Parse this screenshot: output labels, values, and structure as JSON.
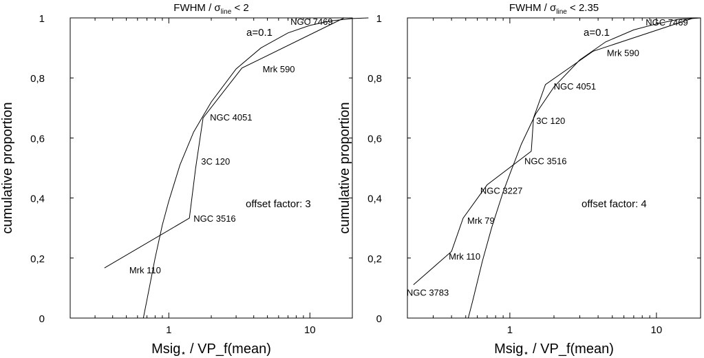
{
  "chart_data": [
    {
      "type": "line",
      "title": "FWHM / σ",
      "title_sub": "line",
      "title_suffix": " < 2",
      "xlabel": "Msig",
      "xlabel_sub": "⋆",
      "xlabel_suffix": " / VP_f(mean)",
      "ylabel": "cumulative proportion",
      "x_scale": "log",
      "xlim": [
        0.2,
        20
      ],
      "ylim": [
        0,
        1
      ],
      "x_ticks": [
        {
          "v": 1,
          "label": "1"
        },
        {
          "v": 10,
          "label": "10"
        }
      ],
      "y_ticks": [
        {
          "v": 0,
          "label": "0"
        },
        {
          "v": 0.2,
          "label": "0,2"
        },
        {
          "v": 0.4,
          "label": "0,4"
        },
        {
          "v": 0.6,
          "label": "0,6"
        },
        {
          "v": 0.8,
          "label": "0,8"
        },
        {
          "v": 1,
          "label": "1"
        }
      ],
      "annotations": [
        "a=0.1",
        "offset factor: 3"
      ],
      "series": [
        {
          "points": [
            {
              "x": 0.35,
              "y": 0.167,
              "label": "Mrk 110"
            },
            {
              "x": 1.4,
              "y": 0.333,
              "label": "NGC 3516"
            },
            {
              "x": 1.55,
              "y": 0.5,
              "label": "3C 120"
            },
            {
              "x": 1.75,
              "y": 0.667,
              "label": "NGC 4051"
            },
            {
              "x": 3.3,
              "y": 0.833,
              "label": "Mrk 590"
            },
            {
              "x": 17.5,
              "y": 1.0,
              "label": "NGC 7469"
            }
          ]
        },
        {
          "x": [
            0.66,
            0.7,
            0.8,
            0.9,
            1.0,
            1.2,
            1.5,
            2.0,
            3.0,
            4.5,
            7.0,
            10.0,
            14.0,
            20.0,
            26.0
          ],
          "y": [
            0.0,
            0.06,
            0.2,
            0.31,
            0.39,
            0.51,
            0.62,
            0.72,
            0.83,
            0.9,
            0.95,
            0.975,
            0.99,
            0.998,
            1.0
          ]
        }
      ]
    },
    {
      "type": "line",
      "title": "FWHM / σ",
      "title_sub": "line",
      "title_suffix": " < 2.35",
      "xlabel": "Msig",
      "xlabel_sub": "⋆",
      "xlabel_suffix": " / VP_f(mean)",
      "ylabel": "cumulative proportion",
      "x_scale": "log",
      "xlim": [
        0.2,
        20
      ],
      "ylim": [
        0,
        1
      ],
      "x_ticks": [
        {
          "v": 1,
          "label": "1"
        },
        {
          "v": 10,
          "label": "10"
        }
      ],
      "y_ticks": [
        {
          "v": 0,
          "label": "0"
        },
        {
          "v": 0.2,
          "label": "0,2"
        },
        {
          "v": 0.4,
          "label": "0,4"
        },
        {
          "v": 0.6,
          "label": "0,6"
        },
        {
          "v": 0.8,
          "label": "0,8"
        },
        {
          "v": 1,
          "label": "1"
        }
      ],
      "annotations": [
        "a=0.1",
        "offset factor: 4"
      ],
      "series": [
        {
          "points": [
            {
              "x": 0.22,
              "y": 0.111,
              "label": "NGC 3783"
            },
            {
              "x": 0.4,
              "y": 0.222,
              "label": "Mrk 110"
            },
            {
              "x": 0.48,
              "y": 0.333,
              "label": "Mrk 79"
            },
            {
              "x": 0.7,
              "y": 0.444,
              "label": "NGC 3227"
            },
            {
              "x": 1.4,
              "y": 0.556,
              "label": "NGC 3516"
            },
            {
              "x": 1.45,
              "y": 0.667,
              "label": "3C 120"
            },
            {
              "x": 1.75,
              "y": 0.778,
              "label": "NGC 4051"
            },
            {
              "x": 3.7,
              "y": 0.889,
              "label": "Mrk 590"
            },
            {
              "x": 18.0,
              "y": 1.0,
              "label": "NGC 7469"
            }
          ]
        },
        {
          "x": [
            0.52,
            0.56,
            0.65,
            0.75,
            0.9,
            1.0,
            1.2,
            1.5,
            2.0,
            3.0,
            4.5,
            7.0,
            10.0,
            14.0,
            20.0
          ],
          "y": [
            0.0,
            0.06,
            0.19,
            0.3,
            0.42,
            0.48,
            0.58,
            0.68,
            0.77,
            0.86,
            0.92,
            0.96,
            0.98,
            0.995,
            1.0
          ]
        }
      ]
    }
  ]
}
